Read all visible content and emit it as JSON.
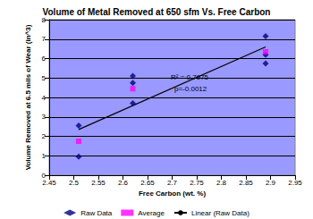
{
  "chart_data": {
    "type": "scatter",
    "title": "Volume of Metal Removed at 650 sfm Vs. Free Carbon",
    "x_label": "Free Carbon (wt. %)",
    "y_label": "Volume Removed at 6.5 mils of Wear (in^3)",
    "annotations": [
      "R² = 0.7975",
      "p=-0.0012"
    ],
    "series": [
      {
        "name": "Raw Data",
        "type": "scatter",
        "color": "#000080",
        "marker": "diamond",
        "x": [
          2.51,
          2.51,
          2.62,
          2.62,
          2.62,
          2.89,
          2.89,
          2.89
        ],
        "values": [
          2.55,
          0.95,
          5.1,
          4.75,
          3.7,
          7.15,
          6.2,
          5.75
        ]
      },
      {
        "name": "Average",
        "type": "scatter",
        "color": "#ff00ff",
        "marker": "square",
        "x": [
          2.51,
          2.62,
          2.89
        ],
        "values": [
          1.75,
          4.45,
          6.35
        ]
      },
      {
        "name": "Linear (Raw Data)",
        "type": "line",
        "color": "#000000",
        "marker": "none",
        "line_style": "solid",
        "x": [
          2.51,
          2.89
        ],
        "values": [
          2.35,
          6.6
        ]
      }
    ],
    "xlim": [
      2.45,
      2.95
    ],
    "xticks": [
      2.45,
      2.5,
      2.55,
      2.6,
      2.65,
      2.7,
      2.75,
      2.8,
      2.85,
      2.9,
      2.95
    ],
    "ylim": [
      0,
      8
    ],
    "yticks": [
      0,
      1,
      2,
      3,
      4,
      5,
      6,
      7,
      8
    ],
    "grid": true,
    "legend": "bottom"
  }
}
